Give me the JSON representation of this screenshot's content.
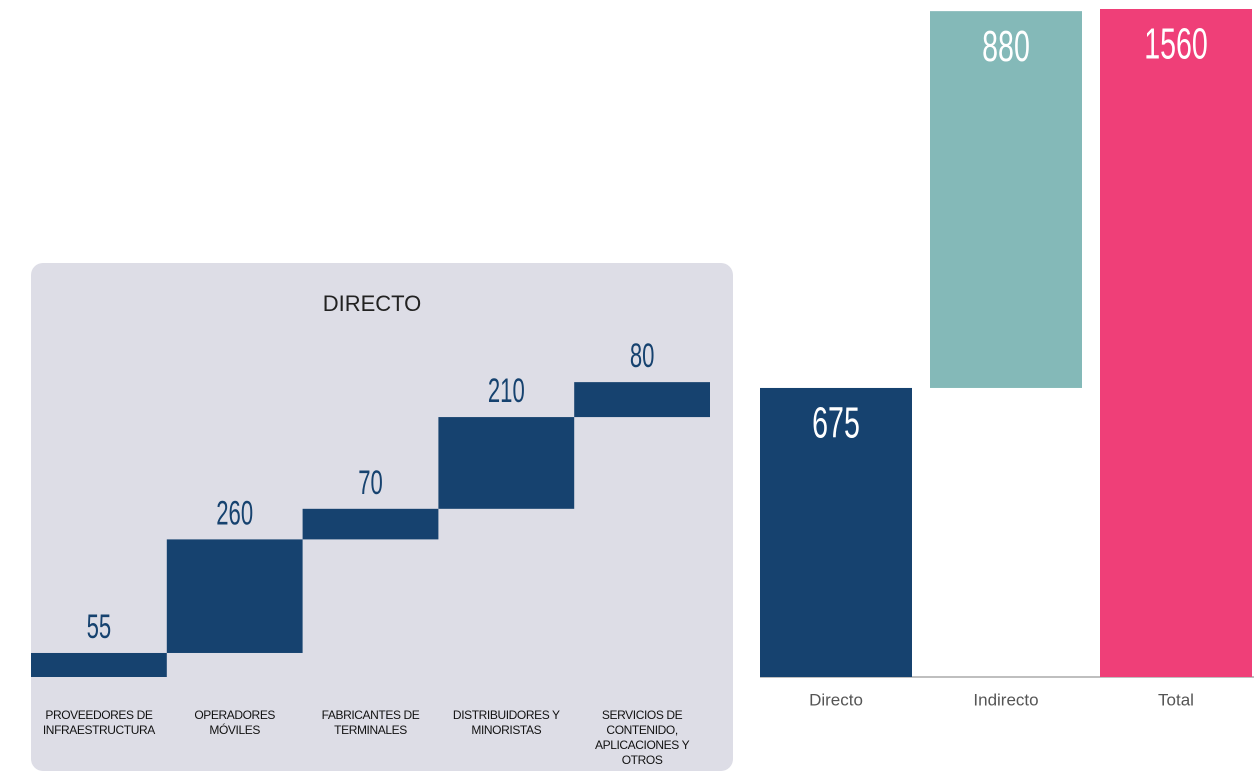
{
  "chart_data": [
    {
      "type": "waterfall",
      "title": "DIRECTO",
      "categories": [
        "PROVEEDORES DE INFRAESTRUCTURA",
        "OPERADORES MÓVILES",
        "FABRICANTES DE TERMINALES",
        "DISTRIBUIDORES Y MINORISTAS",
        "SERVICIOS DE CONTENIDO, APLICACIONES Y OTROS"
      ],
      "values": [
        55,
        260,
        70,
        210,
        80
      ],
      "color": "#16426f",
      "ylim": [
        0,
        760
      ]
    },
    {
      "type": "waterfall",
      "categories": [
        "Directo",
        "Indirecto",
        "Total"
      ],
      "values": [
        675,
        880,
        1560
      ],
      "measure": [
        "relative",
        "relative",
        "total"
      ],
      "colors": [
        "#16426f",
        "#84b9b8",
        "#ef3f78"
      ],
      "ylim": [
        0,
        1560
      ]
    }
  ]
}
